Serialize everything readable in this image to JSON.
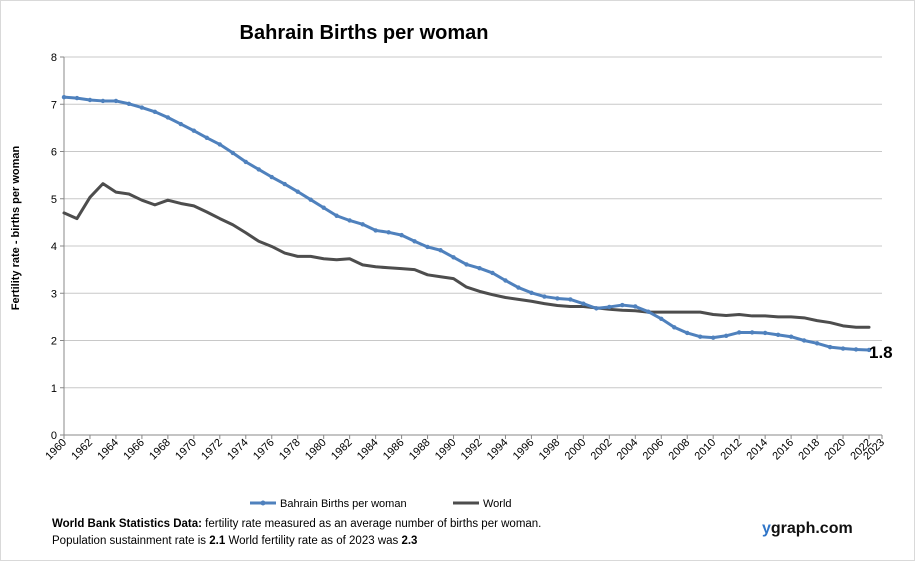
{
  "chart_data": {
    "type": "line",
    "title": "Bahrain Births per woman",
    "xlabel": "",
    "ylabel": "Fertility rate  - births per woman",
    "ylim": [
      0,
      8
    ],
    "yticks": [
      "0",
      "1",
      "2",
      "3",
      "4",
      "5",
      "6",
      "7",
      "8"
    ],
    "xticks": [
      "1960",
      "1962",
      "1964",
      "1966",
      "1968",
      "1970",
      "1972",
      "1974",
      "1976",
      "1978",
      "1980",
      "1982",
      "1984",
      "1986",
      "1988",
      "1990",
      "1992",
      "1994",
      "1996",
      "1998",
      "2000",
      "2002",
      "2004",
      "2006",
      "2008",
      "2010",
      "2012",
      "2014",
      "2016",
      "2018",
      "2020",
      "2022",
      "2023"
    ],
    "grid": true,
    "legend_position": "bottom",
    "x": [
      1960,
      1961,
      1962,
      1963,
      1964,
      1965,
      1966,
      1967,
      1968,
      1969,
      1970,
      1971,
      1972,
      1973,
      1974,
      1975,
      1976,
      1977,
      1978,
      1979,
      1980,
      1981,
      1982,
      1983,
      1984,
      1985,
      1986,
      1987,
      1988,
      1989,
      1990,
      1991,
      1992,
      1993,
      1994,
      1995,
      1996,
      1997,
      1998,
      1999,
      2000,
      2001,
      2002,
      2003,
      2004,
      2005,
      2006,
      2007,
      2008,
      2009,
      2010,
      2011,
      2012,
      2013,
      2014,
      2015,
      2016,
      2017,
      2018,
      2019,
      2020,
      2021,
      2022
    ],
    "series": [
      {
        "name": "Bahrain Births per woman",
        "color": "#4f81bd",
        "markers": true,
        "values": [
          7.15,
          7.13,
          7.09,
          7.07,
          7.07,
          7.01,
          6.93,
          6.84,
          6.72,
          6.58,
          6.44,
          6.29,
          6.15,
          5.97,
          5.78,
          5.62,
          5.46,
          5.31,
          5.15,
          4.98,
          4.81,
          4.64,
          4.54,
          4.46,
          4.33,
          4.29,
          4.23,
          4.1,
          3.98,
          3.91,
          3.76,
          3.61,
          3.53,
          3.43,
          3.27,
          3.12,
          3.01,
          2.93,
          2.89,
          2.87,
          2.78,
          2.68,
          2.71,
          2.75,
          2.72,
          2.61,
          2.46,
          2.28,
          2.16,
          2.08,
          2.06,
          2.1,
          2.17,
          2.17,
          2.16,
          2.12,
          2.08,
          2.0,
          1.94,
          1.86,
          1.83,
          1.81,
          1.8
        ]
      },
      {
        "name": "World",
        "color": "#4d4d4d",
        "markers": false,
        "values": [
          4.7,
          4.58,
          5.03,
          5.32,
          5.14,
          5.1,
          4.97,
          4.87,
          4.97,
          4.9,
          4.85,
          4.72,
          4.58,
          4.45,
          4.28,
          4.1,
          3.99,
          3.85,
          3.78,
          3.78,
          3.73,
          3.71,
          3.73,
          3.6,
          3.56,
          3.54,
          3.52,
          3.5,
          3.39,
          3.35,
          3.31,
          3.13,
          3.04,
          2.97,
          2.91,
          2.87,
          2.83,
          2.78,
          2.74,
          2.72,
          2.72,
          2.69,
          2.66,
          2.64,
          2.63,
          2.6,
          2.6,
          2.6,
          2.6,
          2.6,
          2.55,
          2.53,
          2.55,
          2.52,
          2.52,
          2.5,
          2.5,
          2.48,
          2.42,
          2.38,
          2.31,
          2.28,
          2.28
        ]
      }
    ],
    "annotations": [
      {
        "text": "1.8"
      }
    ]
  },
  "footer": {
    "line1_bold": "World Bank Statistics Data:",
    "line1_text": " fertility rate measured as an average number  of births per woman.",
    "line2_a": "Population sustainment rate is ",
    "line2_b": "2.1",
    "line2_c": "   World fertility rate as of 2023 was ",
    "line2_d": "2.3"
  },
  "brand": {
    "y": "y",
    "rest": "graph.com"
  }
}
